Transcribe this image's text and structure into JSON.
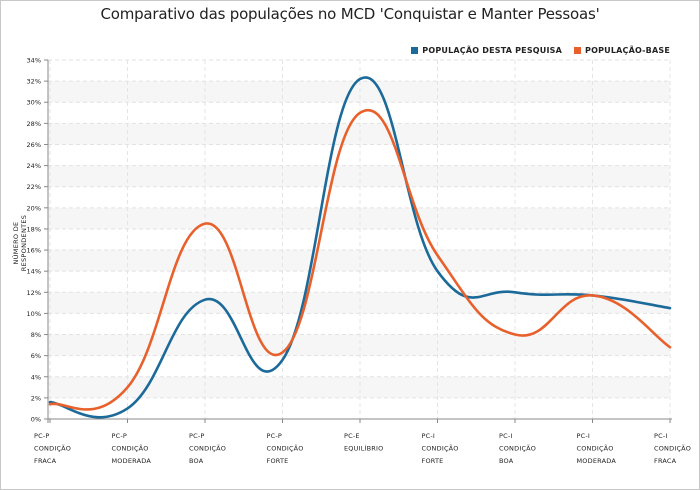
{
  "chart_data": {
    "type": "line",
    "title": "Comparativo das populações no MCD 'Conquistar e Manter Pessoas'",
    "ylabel": "NÚMERO DE RESPONDENTES",
    "xlabel": "",
    "ylim": [
      0,
      34
    ],
    "yticks": [
      "0%",
      "2%",
      "4%",
      "6%",
      "8%",
      "10%",
      "12%",
      "14%",
      "16%",
      "18%",
      "20%",
      "22%",
      "24%",
      "26%",
      "28%",
      "30%",
      "32%",
      "34%"
    ],
    "legend_position": "top-right",
    "grid": true,
    "categories": [
      [
        "PC-P",
        "CONDIÇÃO",
        "FRACA"
      ],
      [
        "PC-P",
        "CONDIÇÃO",
        "MODERADA"
      ],
      [
        "PC-P",
        "CONDIÇÃO",
        "BOA"
      ],
      [
        "PC-P",
        "CONDIÇÃO",
        "FORTE"
      ],
      [
        "PC-E",
        "EQUILÍBRIO",
        ""
      ],
      [
        "PC-I",
        "CONDIÇÃO",
        "FORTE"
      ],
      [
        "PC-I",
        "CONDIÇÃO",
        "BOA"
      ],
      [
        "PC-I",
        "CONDIÇÃO",
        "MODERADA"
      ],
      [
        "PC-I",
        "CONDIÇÃO",
        "FRACA"
      ]
    ],
    "series": [
      {
        "name": "POPULAÇÃO DESTA PESQUISA",
        "color": "#1b6a9a",
        "values": [
          1.6,
          1.0,
          11.3,
          5.6,
          32.2,
          14.0,
          12.0,
          11.7,
          10.5
        ]
      },
      {
        "name": "POPULAÇÃO-BASE",
        "color": "#e8612c",
        "values": [
          1.4,
          3.0,
          18.5,
          6.3,
          29.0,
          15.5,
          8.0,
          11.7,
          6.8
        ]
      }
    ]
  }
}
